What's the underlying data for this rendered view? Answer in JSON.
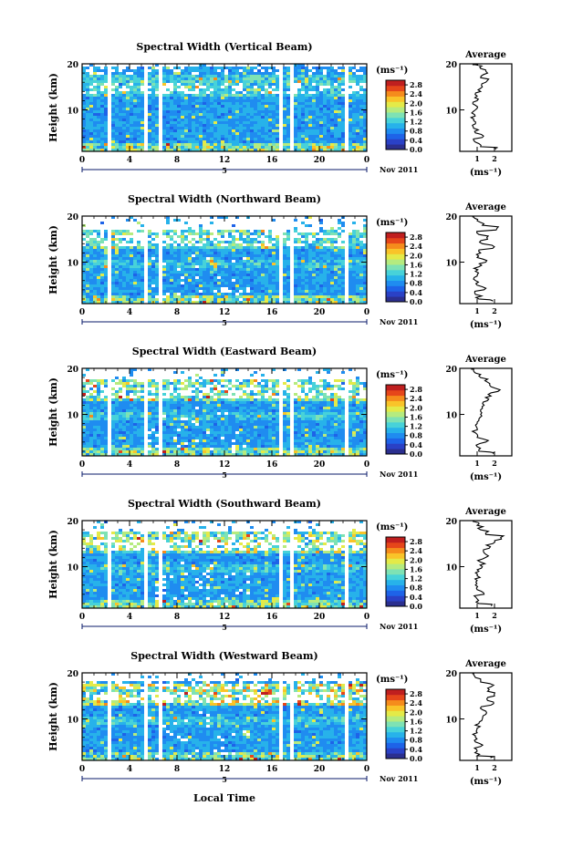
{
  "figure": {
    "xlabel": "Local Time",
    "date_label": "Nov 2011",
    "day_marker": "5",
    "average_title": "Average",
    "colorbar_unit": "(ms⁻¹)",
    "unit_label": "(ms⁻¹)",
    "ylabel": "Height (km)"
  },
  "colors": {
    "scale": [
      "#2b2f8f",
      "#2a41c6",
      "#1e63e8",
      "#1f8cf0",
      "#27b2ea",
      "#47d2d9",
      "#7ee2b4",
      "#b5eb7f",
      "#e4ea48",
      "#f9c429",
      "#f58c1c",
      "#e6461a",
      "#c01f1f"
    ],
    "background": "#ffffff",
    "line": "#000000"
  },
  "chart_data": [
    {
      "type": "heatmap",
      "title": "Spectral Width (Vertical Beam)",
      "x_range": [
        0,
        24
      ],
      "y_range": [
        1,
        20
      ],
      "x_ticks": [
        "0",
        "4",
        "8",
        "12",
        "16",
        "20",
        "0"
      ],
      "y_ticks": [
        "10",
        "20"
      ],
      "colorbar_ticks": [
        "2.8",
        "2.4",
        "2.0",
        "1.6",
        "1.2",
        "0.8",
        "0.4",
        "0.0"
      ],
      "colorbar_range": [
        0,
        3.0
      ],
      "gaps_hours": [
        [
          1.9,
          2.4
        ],
        [
          5.2,
          5.5
        ],
        [
          6.2,
          6.6
        ],
        [
          16.4,
          16.7
        ],
        [
          17.5,
          17.8
        ],
        [
          22.1,
          22.4
        ]
      ],
      "top_km": 19.8,
      "average": {
        "x_ticks": [
          "1",
          "2"
        ],
        "x_range": [
          0,
          3.0
        ],
        "y_ticks": [
          "10",
          "20"
        ],
        "height_km": [
          1.5,
          2,
          3,
          4,
          5,
          6,
          7,
          8,
          9,
          10,
          11,
          12,
          13,
          14,
          15,
          16,
          17,
          18,
          19,
          19.8
        ],
        "values": [
          2.1,
          1.2,
          0.9,
          1.3,
          0.9,
          0.8,
          0.9,
          0.8,
          0.85,
          0.9,
          0.9,
          1.0,
          1.0,
          1.2,
          1.3,
          1.5,
          1.2,
          1.6,
          1.2,
          0.9
        ]
      }
    },
    {
      "type": "heatmap",
      "title": "Spectral Width (Northward Beam)",
      "x_range": [
        0,
        24
      ],
      "y_range": [
        1,
        20
      ],
      "x_ticks": [
        "0",
        "4",
        "8",
        "12",
        "16",
        "20",
        "0"
      ],
      "y_ticks": [
        "10",
        "20"
      ],
      "colorbar_ticks": [
        "2.8",
        "2.4",
        "2.0",
        "1.6",
        "1.2",
        "0.8",
        "0.4",
        "0.0"
      ],
      "colorbar_range": [
        0,
        3.0
      ],
      "gaps_hours": [
        [
          1.9,
          2.4
        ],
        [
          5.2,
          5.5
        ],
        [
          6.2,
          6.6
        ],
        [
          16.4,
          16.7
        ],
        [
          17.5,
          17.8
        ],
        [
          22.1,
          22.4
        ]
      ],
      "top_km": 17.5,
      "average": {
        "x_ticks": [
          "1",
          "2"
        ],
        "x_range": [
          0,
          3.0
        ],
        "y_ticks": [
          "10",
          "20"
        ],
        "height_km": [
          1.5,
          2,
          3,
          4,
          5,
          6,
          7,
          8,
          9,
          10,
          11,
          12,
          13,
          14,
          15,
          16,
          17,
          18,
          19,
          19.8
        ],
        "values": [
          1.9,
          1.1,
          0.9,
          1.4,
          1.0,
          0.9,
          1.0,
          0.9,
          1.1,
          1.5,
          1.0,
          1.2,
          1.9,
          1.3,
          1.6,
          1.1,
          2.1,
          1.3,
          1.0,
          0.8
        ]
      }
    },
    {
      "type": "heatmap",
      "title": "Spectral Width (Eastward Beam)",
      "x_range": [
        0,
        24
      ],
      "y_range": [
        1,
        20
      ],
      "x_ticks": [
        "0",
        "4",
        "8",
        "12",
        "16",
        "20",
        "0"
      ],
      "y_ticks": [
        "10",
        "20"
      ],
      "colorbar_ticks": [
        "2.8",
        "2.4",
        "2.0",
        "1.6",
        "1.2",
        "0.8",
        "0.4",
        "0.0"
      ],
      "colorbar_range": [
        0,
        3.0
      ],
      "gaps_hours": [
        [
          1.9,
          2.4
        ],
        [
          5.2,
          5.5
        ],
        [
          6.2,
          6.6
        ],
        [
          16.4,
          16.7
        ],
        [
          17.5,
          17.8
        ],
        [
          22.1,
          22.4
        ]
      ],
      "top_km": 18.0,
      "average": {
        "x_ticks": [
          "1",
          "2"
        ],
        "x_range": [
          0,
          3.0
        ],
        "y_ticks": [
          "10",
          "20"
        ],
        "height_km": [
          1.5,
          2,
          3,
          4,
          5,
          6,
          7,
          8,
          9,
          10,
          11,
          12,
          13,
          14,
          15,
          16,
          17,
          18,
          19,
          19.8
        ],
        "values": [
          1.9,
          1.1,
          1.0,
          1.5,
          1.0,
          0.9,
          1.0,
          1.0,
          1.1,
          1.2,
          1.2,
          1.4,
          1.6,
          1.8,
          2.2,
          1.8,
          1.6,
          1.2,
          0.9,
          0.8
        ]
      }
    },
    {
      "type": "heatmap",
      "title": "Spectral Width (Southward Beam)",
      "x_range": [
        0,
        24
      ],
      "y_range": [
        1,
        20
      ],
      "x_ticks": [
        "0",
        "4",
        "8",
        "12",
        "16",
        "20",
        "0"
      ],
      "y_ticks": [
        "10",
        "20"
      ],
      "colorbar_ticks": [
        "2.8",
        "2.4",
        "2.0",
        "1.6",
        "1.2",
        "0.8",
        "0.4",
        "0.0"
      ],
      "colorbar_range": [
        0,
        3.0
      ],
      "gaps_hours": [
        [
          1.9,
          2.4
        ],
        [
          5.2,
          5.5
        ],
        [
          6.2,
          6.6
        ],
        [
          16.4,
          16.7
        ],
        [
          17.5,
          17.8
        ],
        [
          22.1,
          22.4
        ]
      ],
      "top_km": 18.0,
      "average": {
        "x_ticks": [
          "1",
          "2"
        ],
        "x_range": [
          0,
          3.0
        ],
        "y_ticks": [
          "10",
          "20"
        ],
        "height_km": [
          1.5,
          2,
          3,
          4,
          5,
          6,
          7,
          8,
          9,
          10,
          11,
          12,
          13,
          14,
          15,
          16,
          17,
          18,
          19,
          19.8
        ],
        "values": [
          1.8,
          1.1,
          1.0,
          1.4,
          1.0,
          0.9,
          1.0,
          1.0,
          1.1,
          1.3,
          1.2,
          1.5,
          1.4,
          1.7,
          1.9,
          2.4,
          1.5,
          1.2,
          1.0,
          0.8
        ]
      }
    },
    {
      "type": "heatmap",
      "title": "Spectral Width (Westward Beam)",
      "x_range": [
        0,
        24
      ],
      "y_range": [
        1,
        20
      ],
      "x_ticks": [
        "0",
        "4",
        "8",
        "12",
        "16",
        "20",
        "0"
      ],
      "y_ticks": [
        "10",
        "20"
      ],
      "colorbar_ticks": [
        "2.8",
        "2.4",
        "2.0",
        "1.6",
        "1.2",
        "0.8",
        "0.4",
        "0.0"
      ],
      "colorbar_range": [
        0,
        3.0
      ],
      "gaps_hours": [
        [
          1.9,
          2.4
        ],
        [
          5.2,
          5.5
        ],
        [
          6.2,
          6.6
        ],
        [
          16.4,
          16.7
        ],
        [
          17.5,
          17.8
        ],
        [
          22.1,
          22.4
        ]
      ],
      "top_km": 18.5,
      "average": {
        "x_ticks": [
          "1",
          "2"
        ],
        "x_range": [
          0,
          3.0
        ],
        "y_ticks": [
          "10",
          "20"
        ],
        "height_km": [
          1.5,
          2,
          3,
          4,
          5,
          6,
          7,
          8,
          9,
          10,
          11,
          12,
          13,
          14,
          15,
          16,
          17,
          18,
          19,
          19.8
        ],
        "values": [
          1.8,
          1.0,
          1.0,
          1.2,
          0.9,
          0.9,
          1.0,
          1.0,
          1.1,
          1.3,
          1.5,
          1.3,
          1.8,
          1.6,
          2.0,
          1.6,
          1.8,
          1.2,
          0.9,
          0.8
        ]
      }
    }
  ]
}
